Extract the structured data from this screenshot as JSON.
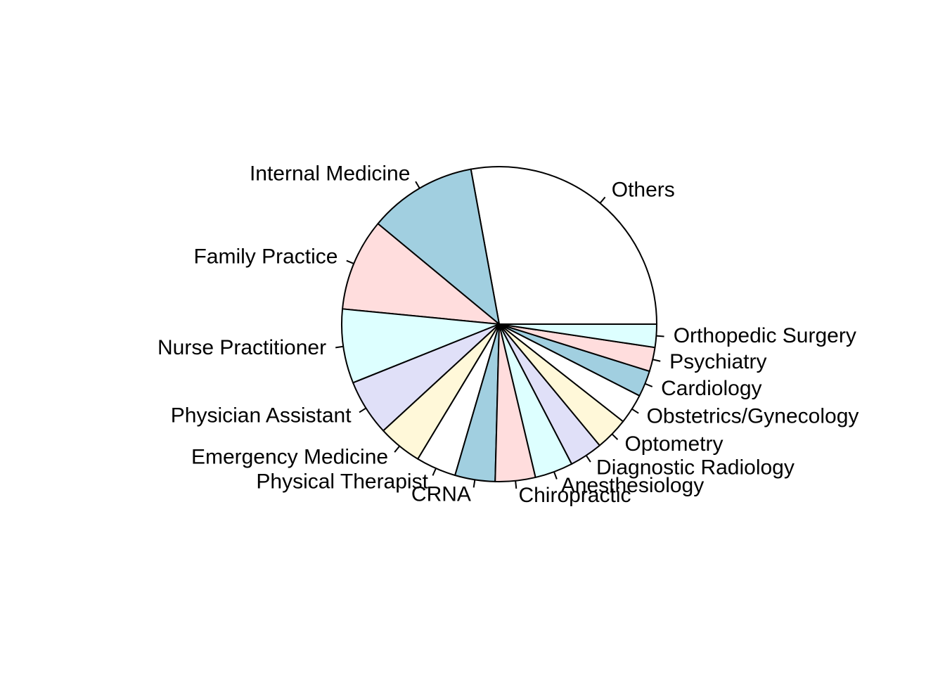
{
  "chart_data": {
    "type": "pie",
    "title": "",
    "direction": "counterclockwise",
    "start_angle_deg": 0,
    "values_unit": "percent",
    "slices": [
      {
        "label": "Others",
        "value": 27.1,
        "color": "#FFFFFF"
      },
      {
        "label": "Internal Medicine",
        "value": 10.8,
        "color": "#A1CFE0"
      },
      {
        "label": "Family Practice",
        "value": 9.2,
        "color": "#FFDDDD"
      },
      {
        "label": "Nurse Practitioner",
        "value": 7.4,
        "color": "#DDFFFF"
      },
      {
        "label": "Physician Assistant",
        "value": 5.6,
        "color": "#E0E0F8"
      },
      {
        "label": "Emergency Medicine",
        "value": 4.4,
        "color": "#FFF8D9"
      },
      {
        "label": "Physical Therapist",
        "value": 4.0,
        "color": "#FFFFFF"
      },
      {
        "label": "CRNA",
        "value": 4.0,
        "color": "#A1CFE0"
      },
      {
        "label": "Chiropractic",
        "value": 4.0,
        "color": "#FFDDDD"
      },
      {
        "label": "Anesthesiology",
        "value": 3.8,
        "color": "#DDFFFF"
      },
      {
        "label": "Diagnostic Radiology",
        "value": 3.3,
        "color": "#E0E0F8"
      },
      {
        "label": "Optometry",
        "value": 3.3,
        "color": "#FFF8D9"
      },
      {
        "label": "Obstetrics/Gynecology",
        "value": 3.0,
        "color": "#FFFFFF"
      },
      {
        "label": "Cardiology",
        "value": 2.6,
        "color": "#A1CFE0"
      },
      {
        "label": "Psychiatry",
        "value": 2.4,
        "color": "#FFDDDD"
      },
      {
        "label": "Orthopedic Surgery",
        "value": 2.3,
        "color": "#DDFFFF"
      }
    ]
  }
}
